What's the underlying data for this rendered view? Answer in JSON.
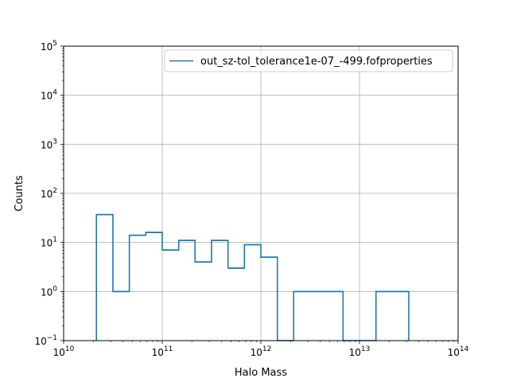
{
  "chart_data": {
    "type": "line",
    "style": "step histogram",
    "xlabel": "Halo Mass",
    "ylabel": "Counts",
    "x_scale": "log",
    "y_scale": "log",
    "xlim": [
      10000000000.0,
      100000000000000.0
    ],
    "ylim": [
      0.1,
      100000
    ],
    "grid": true,
    "legend_position": "top-right",
    "x_ticks": [
      {
        "value": 10000000000.0,
        "base": "10",
        "exp": "10"
      },
      {
        "value": 100000000000.0,
        "base": "10",
        "exp": "11"
      },
      {
        "value": 1000000000000.0,
        "base": "10",
        "exp": "12"
      },
      {
        "value": 10000000000000.0,
        "base": "10",
        "exp": "13"
      },
      {
        "value": 100000000000000.0,
        "base": "10",
        "exp": "14"
      }
    ],
    "y_ticks": [
      {
        "value": 0.1,
        "base": "10",
        "exp": "−1"
      },
      {
        "value": 1,
        "base": "10",
        "exp": "0"
      },
      {
        "value": 10,
        "base": "10",
        "exp": "1"
      },
      {
        "value": 100,
        "base": "10",
        "exp": "2"
      },
      {
        "value": 1000,
        "base": "10",
        "exp": "3"
      },
      {
        "value": 10000,
        "base": "10",
        "exp": "4"
      },
      {
        "value": 100000,
        "base": "10",
        "exp": "5"
      }
    ],
    "series": [
      {
        "name": "out_sz-tol_tolerance1e-07_-499.fofproperties",
        "color": "#1f77b4",
        "bin_edges": [
          21500000000.0,
          31600000000.0,
          46400000000.0,
          68100000000.0,
          100000000000.0,
          147000000000.0,
          215000000000.0,
          316000000000.0,
          464000000000.0,
          681000000000.0,
          1000000000000.0,
          1470000000000.0,
          2150000000000.0,
          3160000000000.0,
          4640000000000.0,
          6810000000000.0,
          10000000000000.0,
          14700000000000.0,
          21500000000000.0,
          31600000000000.0
        ],
        "counts": [
          37,
          1,
          14,
          16,
          7,
          11,
          4,
          11,
          3,
          9,
          5,
          0,
          1,
          1,
          1,
          0,
          0,
          1,
          1
        ]
      }
    ]
  }
}
